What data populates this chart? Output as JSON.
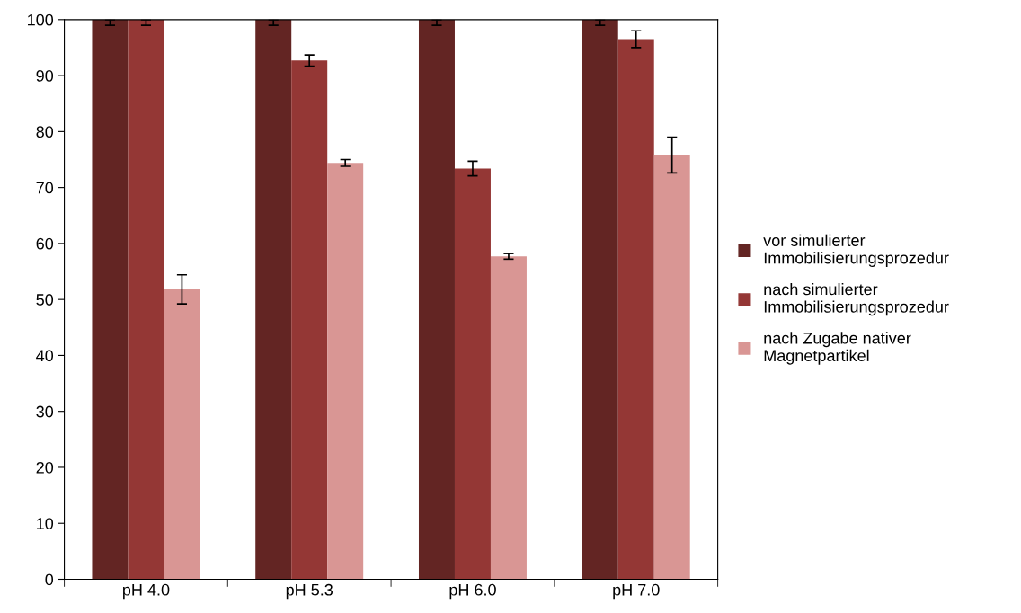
{
  "chart_data": {
    "type": "bar",
    "categories": [
      "pH 4.0",
      "pH 5.3",
      "pH 6.0",
      "pH 7.0"
    ],
    "series": [
      {
        "name": "vor simulierter\nImmobilisierungsprozedur",
        "color": "#632523",
        "values": [
          100,
          100,
          100,
          100
        ],
        "errors": [
          [
            99,
            100
          ],
          [
            99,
            100
          ],
          [
            99,
            100
          ],
          [
            99,
            100
          ]
        ]
      },
      {
        "name": "nach simulierter\nImmobilisierungsprozedur",
        "color": "#943735",
        "values": [
          100,
          92.7,
          73.4,
          96.5
        ],
        "errors": [
          [
            99,
            100
          ],
          [
            91.7,
            93.7
          ],
          [
            72.1,
            74.7
          ],
          [
            95.0,
            98.0
          ]
        ]
      },
      {
        "name": "nach Zugabe nativer\nMagnetpartikel",
        "color": "#d99694",
        "values": [
          51.8,
          74.4,
          57.7,
          75.8
        ],
        "errors": [
          [
            49.2,
            54.4
          ],
          [
            73.8,
            75.0
          ],
          [
            57.2,
            58.2
          ],
          [
            72.6,
            79.0
          ]
        ]
      }
    ],
    "ylim": [
      0,
      100
    ],
    "yticks": [
      0,
      10,
      20,
      30,
      40,
      50,
      60,
      70,
      80,
      90,
      100
    ],
    "grid": false,
    "legend": "right"
  }
}
